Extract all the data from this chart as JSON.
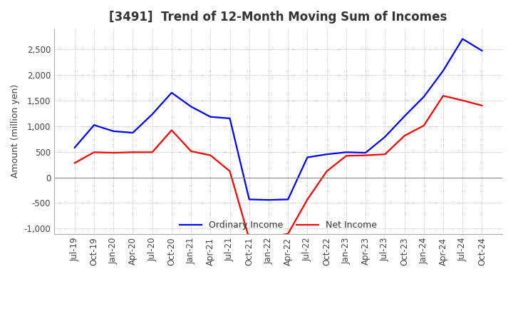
{
  "title": "[3491]  Trend of 12-Month Moving Sum of Incomes",
  "ylabel": "Amount (million yen)",
  "ylim": [
    -1100,
    2900
  ],
  "yticks": [
    -1000,
    -500,
    0,
    500,
    1000,
    1500,
    2000,
    2500
  ],
  "ordinary_income_color": "#0000FF",
  "net_income_color": "#FF0000",
  "background_color": "#FFFFFF",
  "grid_color": "#AAAAAA",
  "x_labels": [
    "Jul-19",
    "Oct-19",
    "Jan-20",
    "Apr-20",
    "Jul-20",
    "Oct-20",
    "Jan-21",
    "Apr-21",
    "Jul-21",
    "Oct-21",
    "Jan-22",
    "Apr-22",
    "Jul-22",
    "Oct-22",
    "Jan-23",
    "Apr-23",
    "Jul-23",
    "Oct-23",
    "Jan-24",
    "Apr-24",
    "Jul-24",
    "Oct-24"
  ],
  "ordinary_income": [
    580,
    1020,
    900,
    870,
    1230,
    1650,
    1380,
    1180,
    1150,
    -430,
    -440,
    -430,
    390,
    450,
    490,
    480,
    790,
    1190,
    1570,
    2080,
    2700,
    2470
  ],
  "net_income": [
    280,
    490,
    480,
    490,
    490,
    920,
    510,
    430,
    120,
    -1200,
    -1170,
    -1100,
    -430,
    120,
    420,
    430,
    450,
    810,
    1010,
    1590,
    1500,
    1400
  ],
  "legend_labels": [
    "Ordinary Income",
    "Net Income"
  ],
  "title_fontsize": 12,
  "axis_fontsize": 9,
  "tick_fontsize": 8.5
}
